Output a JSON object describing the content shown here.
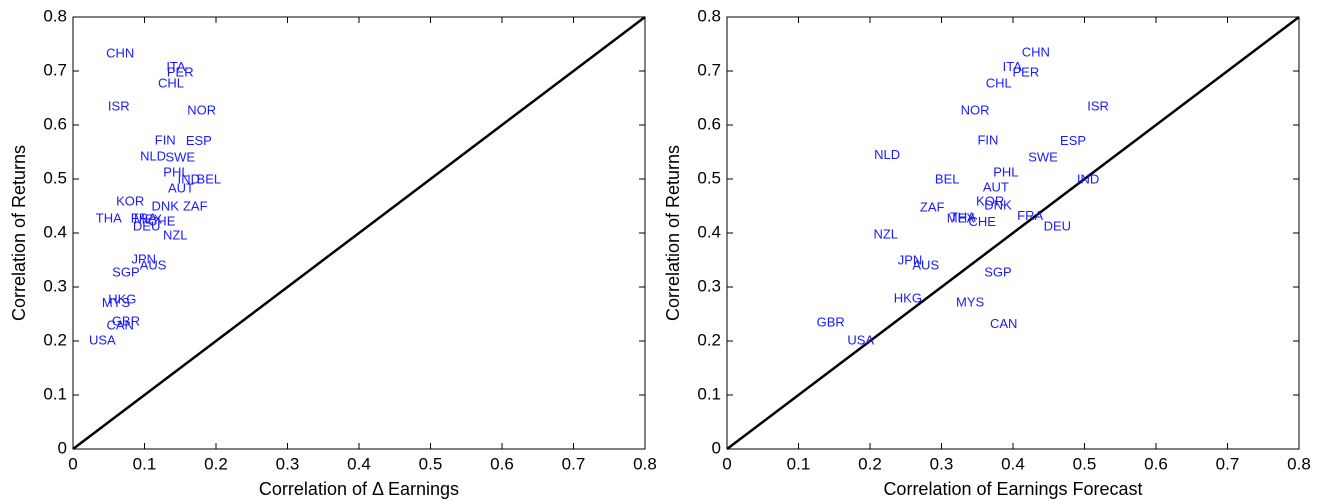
{
  "chart_data": [
    {
      "type": "scatter",
      "xlabel": "Correlation of Δ Earnings",
      "ylabel": "Correlation of Returns",
      "xlim": [
        0,
        0.8
      ],
      "ylim": [
        0,
        0.8
      ],
      "xticks": [
        0,
        0.1,
        0.2,
        0.3,
        0.4,
        0.5,
        0.6,
        0.7,
        0.8
      ],
      "yticks": [
        0,
        0.1,
        0.2,
        0.3,
        0.4,
        0.5,
        0.6,
        0.7,
        0.8
      ],
      "diagonal": true,
      "color": "#1a1aff",
      "labels": [
        "CHN",
        "ITA",
        "PER",
        "CHL",
        "ISR",
        "NOR",
        "FIN",
        "ESP",
        "NLD",
        "SWE",
        "PHL",
        "IND",
        "BEL",
        "AUT",
        "KOR",
        "DNK",
        "ZAF",
        "THA",
        "FRA",
        "MEX",
        "CHE",
        "DEU",
        "NZL",
        "JPN",
        "AUS",
        "SGP",
        "HKG",
        "MYS",
        "GBR",
        "CAN",
        "USA"
      ],
      "x": [
        0.066,
        0.144,
        0.15,
        0.137,
        0.064,
        0.18,
        0.129,
        0.176,
        0.112,
        0.15,
        0.144,
        0.162,
        0.19,
        0.151,
        0.08,
        0.129,
        0.171,
        0.05,
        0.099,
        0.105,
        0.124,
        0.103,
        0.143,
        0.099,
        0.112,
        0.074,
        0.069,
        0.06,
        0.074,
        0.066,
        0.041
      ],
      "y": [
        0.731,
        0.706,
        0.696,
        0.676,
        0.633,
        0.626,
        0.57,
        0.569,
        0.541,
        0.539,
        0.511,
        0.498,
        0.498,
        0.481,
        0.457,
        0.448,
        0.448,
        0.426,
        0.426,
        0.424,
        0.42,
        0.411,
        0.394,
        0.35,
        0.339,
        0.326,
        0.276,
        0.269,
        0.235,
        0.228,
        0.2
      ]
    },
    {
      "type": "scatter",
      "xlabel": "Correlation of Earnings Forecast",
      "ylabel": "Correlation of Returns",
      "xlim": [
        0,
        0.8
      ],
      "ylim": [
        0,
        0.8
      ],
      "xticks": [
        0,
        0.1,
        0.2,
        0.3,
        0.4,
        0.5,
        0.6,
        0.7,
        0.8
      ],
      "yticks": [
        0,
        0.1,
        0.2,
        0.3,
        0.4,
        0.5,
        0.6,
        0.7,
        0.8
      ],
      "diagonal": true,
      "color": "#1a1aff",
      "labels": [
        "CHN",
        "ITA",
        "PER",
        "CHL",
        "ISR",
        "NOR",
        "FIN",
        "ESP",
        "NLD",
        "SWE",
        "PHL",
        "IND",
        "BEL",
        "AUT",
        "KOR",
        "DNK",
        "ZAF",
        "FRA",
        "MEX",
        "THA",
        "CHE",
        "DEU",
        "NZL",
        "JPN",
        "AUS",
        "SGP",
        "HKG",
        "MYS",
        "CAN",
        "GBR",
        "USA"
      ],
      "x": [
        0.432,
        0.399,
        0.418,
        0.38,
        0.519,
        0.347,
        0.365,
        0.484,
        0.224,
        0.442,
        0.39,
        0.505,
        0.308,
        0.376,
        0.368,
        0.379,
        0.287,
        0.424,
        0.327,
        0.33,
        0.357,
        0.462,
        0.222,
        0.256,
        0.278,
        0.379,
        0.253,
        0.34,
        0.387,
        0.145,
        0.187
      ],
      "y": [
        0.733,
        0.706,
        0.696,
        0.676,
        0.633,
        0.626,
        0.57,
        0.569,
        0.543,
        0.539,
        0.511,
        0.498,
        0.498,
        0.483,
        0.457,
        0.45,
        0.446,
        0.43,
        0.426,
        0.428,
        0.419,
        0.411,
        0.396,
        0.348,
        0.339,
        0.326,
        0.278,
        0.27,
        0.23,
        0.233,
        0.2
      ]
    }
  ]
}
